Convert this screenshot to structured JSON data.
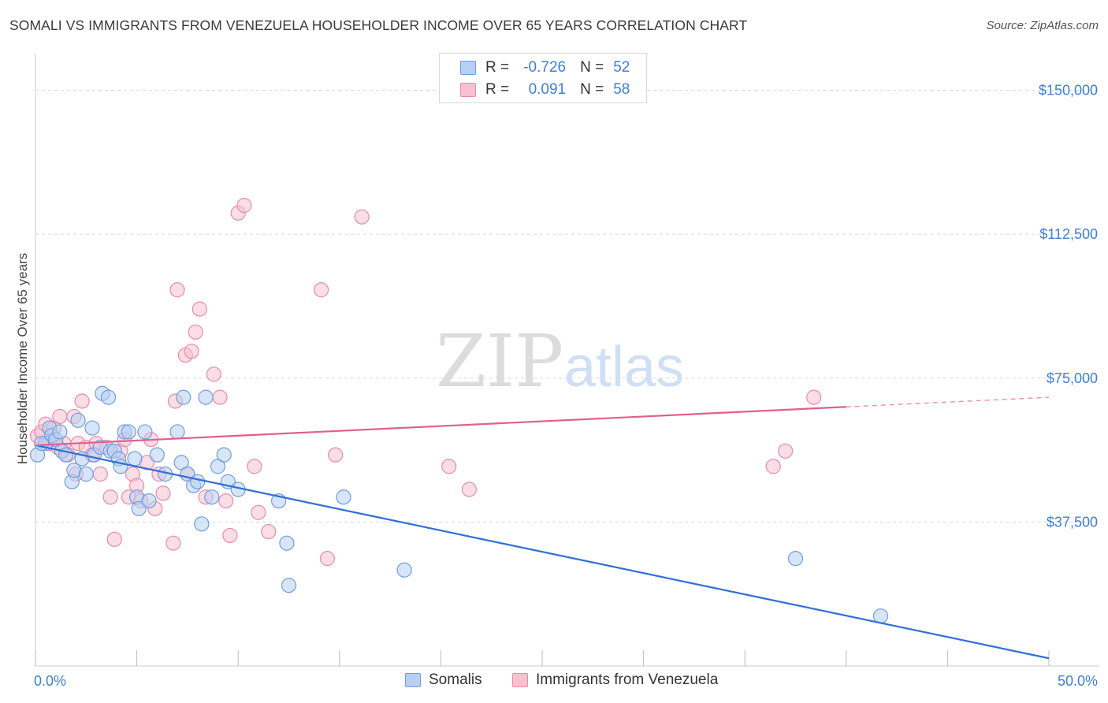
{
  "title": "SOMALI VS IMMIGRANTS FROM VENEZUELA HOUSEHOLDER INCOME OVER 65 YEARS CORRELATION CHART",
  "source": "Source: ZipAtlas.com",
  "watermark": {
    "zip": "ZIP",
    "atlas": "atlas"
  },
  "legend": {
    "r_label": "R =",
    "n_label": "N =",
    "rows": [
      {
        "r": "-0.726",
        "n": "52"
      },
      {
        "r": "0.091",
        "n": "58"
      }
    ]
  },
  "bottom_legend": [
    "Somalis",
    "Immigrants from Venezuela"
  ],
  "colors": {
    "blue_fill": "#b7cff3",
    "blue_stroke": "#6f9de0",
    "blue_line": "#2f6fd6",
    "pink_fill": "#f7c1d2",
    "pink_stroke": "#e98aa9",
    "pink_line": "#e0608a",
    "tick_text": "#3f7fd9"
  },
  "chart_data": {
    "type": "scatter",
    "title": "SOMALI VS IMMIGRANTS FROM VENEZUELA HOUSEHOLDER INCOME OVER 65 YEARS CORRELATION CHART",
    "xlabel": "",
    "ylabel": "Householder Income Over 65 years",
    "xlim": [
      0,
      50
    ],
    "ylim": [
      0,
      157500
    ],
    "x_tick_labels": [
      "0.0%",
      "50.0%"
    ],
    "y_ticks": [
      37500,
      75000,
      112500,
      150000
    ],
    "y_tick_labels": [
      "$37,500",
      "$75,000",
      "$112,500",
      "$150,000"
    ],
    "grid": true,
    "legend_position": "top-center",
    "series": [
      {
        "name": "Somalis",
        "color": "#6f9de0",
        "trend": {
          "x": [
            0,
            50
          ],
          "y": [
            57500,
            2000
          ]
        },
        "points": [
          [
            0.1,
            55000
          ],
          [
            0.5,
            58000
          ],
          [
            0.7,
            62000
          ],
          [
            0.8,
            60000
          ],
          [
            1.0,
            59000
          ],
          [
            1.2,
            61000
          ],
          [
            1.3,
            56000
          ],
          [
            1.5,
            55000
          ],
          [
            1.8,
            48000
          ],
          [
            1.9,
            51000
          ],
          [
            2.1,
            64000
          ],
          [
            2.3,
            54000
          ],
          [
            2.5,
            50000
          ],
          [
            2.8,
            62000
          ],
          [
            2.9,
            55000
          ],
          [
            3.2,
            57000
          ],
          [
            3.3,
            71000
          ],
          [
            3.6,
            70000
          ],
          [
            3.7,
            56000
          ],
          [
            3.9,
            56000
          ],
          [
            4.1,
            54000
          ],
          [
            4.2,
            52000
          ],
          [
            4.4,
            61000
          ],
          [
            4.6,
            61000
          ],
          [
            4.9,
            54000
          ],
          [
            5.0,
            44000
          ],
          [
            5.1,
            41000
          ],
          [
            5.4,
            61000
          ],
          [
            5.6,
            43000
          ],
          [
            6.0,
            55000
          ],
          [
            6.4,
            50000
          ],
          [
            7.0,
            61000
          ],
          [
            7.2,
            53000
          ],
          [
            7.3,
            70000
          ],
          [
            7.5,
            50000
          ],
          [
            7.8,
            47000
          ],
          [
            8.0,
            48000
          ],
          [
            8.2,
            37000
          ],
          [
            8.4,
            70000
          ],
          [
            8.7,
            44000
          ],
          [
            9.0,
            52000
          ],
          [
            9.3,
            55000
          ],
          [
            9.5,
            48000
          ],
          [
            10.0,
            46000
          ],
          [
            12.0,
            43000
          ],
          [
            12.4,
            32000
          ],
          [
            12.5,
            21000
          ],
          [
            15.2,
            44000
          ],
          [
            18.2,
            25000
          ],
          [
            37.5,
            28000
          ],
          [
            41.7,
            13000
          ],
          [
            0.3,
            58000
          ]
        ]
      },
      {
        "name": "Immigrants from Venezuela",
        "color": "#e98aa9",
        "trend": {
          "x": [
            0,
            40
          ],
          "y": [
            57500,
            67500
          ],
          "dash_x": [
            40,
            50
          ],
          "dash_y": [
            67500,
            70000
          ]
        },
        "points": [
          [
            0.1,
            60000
          ],
          [
            0.3,
            61000
          ],
          [
            0.5,
            63000
          ],
          [
            0.7,
            58000
          ],
          [
            0.9,
            62000
          ],
          [
            1.2,
            65000
          ],
          [
            1.4,
            58000
          ],
          [
            1.6,
            55000
          ],
          [
            1.9,
            65000
          ],
          [
            2.1,
            58000
          ],
          [
            2.3,
            69000
          ],
          [
            2.5,
            57000
          ],
          [
            2.8,
            55000
          ],
          [
            3.0,
            58000
          ],
          [
            3.2,
            50000
          ],
          [
            3.5,
            57000
          ],
          [
            3.7,
            44000
          ],
          [
            3.9,
            33000
          ],
          [
            4.2,
            56000
          ],
          [
            4.4,
            59000
          ],
          [
            4.6,
            44000
          ],
          [
            4.8,
            50000
          ],
          [
            5.0,
            47000
          ],
          [
            5.2,
            43000
          ],
          [
            5.5,
            53000
          ],
          [
            5.7,
            59000
          ],
          [
            5.9,
            41000
          ],
          [
            6.1,
            50000
          ],
          [
            6.3,
            45000
          ],
          [
            6.8,
            32000
          ],
          [
            6.9,
            69000
          ],
          [
            7.0,
            98000
          ],
          [
            7.4,
            81000
          ],
          [
            7.5,
            50000
          ],
          [
            7.7,
            82000
          ],
          [
            7.9,
            87000
          ],
          [
            8.1,
            93000
          ],
          [
            8.4,
            44000
          ],
          [
            8.8,
            76000
          ],
          [
            9.1,
            70000
          ],
          [
            9.4,
            43000
          ],
          [
            9.6,
            34000
          ],
          [
            10.0,
            118000
          ],
          [
            10.3,
            120000
          ],
          [
            10.8,
            52000
          ],
          [
            11.0,
            40000
          ],
          [
            11.5,
            35000
          ],
          [
            14.1,
            98000
          ],
          [
            14.4,
            28000
          ],
          [
            14.8,
            55000
          ],
          [
            16.1,
            117000
          ],
          [
            20.4,
            52000
          ],
          [
            21.4,
            46000
          ],
          [
            36.4,
            52000
          ],
          [
            37.0,
            56000
          ],
          [
            38.4,
            70000
          ],
          [
            1.1,
            57000
          ],
          [
            2.0,
            50000
          ]
        ]
      }
    ]
  }
}
